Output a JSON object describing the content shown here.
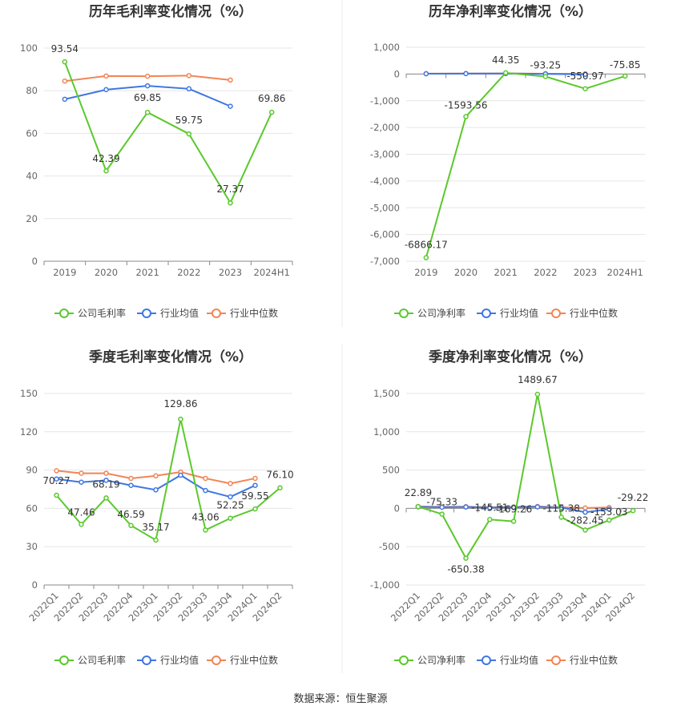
{
  "source": "数据来源：恒生聚源",
  "colors": {
    "company": "#5ac92c",
    "avg": "#3f77e3",
    "median": "#f28554"
  },
  "chart_data": [
    {
      "type": "line",
      "title": "历年毛利率变化情况（%）",
      "categories": [
        "2019",
        "2020",
        "2021",
        "2022",
        "2023",
        "2024H1"
      ],
      "ylim": [
        0,
        100
      ],
      "yticks": [
        "0",
        "20",
        "40",
        "60",
        "80",
        "100"
      ],
      "grid": true,
      "legend": "bottom",
      "series": [
        {
          "name": "公司毛利率",
          "key": "company",
          "values": [
            93.54,
            42.39,
            69.85,
            59.75,
            27.37,
            69.86
          ],
          "labels": [
            "93.54",
            "42.39",
            "69.85",
            "59.75",
            "27.37",
            "69.86"
          ]
        },
        {
          "name": "行业均值",
          "key": "avg",
          "values": [
            76.0,
            80.5,
            82.3,
            80.9,
            72.7,
            null
          ]
        },
        {
          "name": "行业中位数",
          "key": "median",
          "values": [
            84.5,
            86.9,
            86.8,
            87.1,
            85.0,
            null
          ]
        }
      ]
    },
    {
      "type": "line",
      "title": "历年净利率变化情况（%）",
      "categories": [
        "2019",
        "2020",
        "2021",
        "2022",
        "2023",
        "2024H1"
      ],
      "ylim": [
        -7000,
        1000
      ],
      "yticks": [
        "-7,000",
        "-6,000",
        "-5,000",
        "-4,000",
        "-3,000",
        "-2,000",
        "-1,000",
        "0",
        "1,000"
      ],
      "grid": true,
      "legend": "bottom",
      "series": [
        {
          "name": "公司净利率",
          "key": "company",
          "values": [
            -6866.17,
            -1593.56,
            44.35,
            -93.25,
            -550.97,
            -75.85
          ],
          "labels": [
            "-6866.17",
            "-1593.56",
            "44.35",
            "-93.25",
            "-550.97",
            "-75.85"
          ]
        },
        {
          "name": "行业均值",
          "key": "avg",
          "values": [
            10,
            15,
            18,
            5,
            -10,
            null
          ]
        },
        {
          "name": "行业中位数",
          "key": "median",
          "values": [
            15,
            20,
            22,
            12,
            8,
            null
          ]
        }
      ]
    },
    {
      "type": "line",
      "title": "季度毛利率变化情况（%）",
      "categories": [
        "2022Q1",
        "2022Q2",
        "2022Q3",
        "2022Q4",
        "2023Q1",
        "2023Q2",
        "2023Q3",
        "2023Q4",
        "2024Q1",
        "2024Q2"
      ],
      "ylim": [
        0,
        150
      ],
      "yticks": [
        "0",
        "30",
        "60",
        "90",
        "120",
        "150"
      ],
      "grid": true,
      "legend": "bottom",
      "series": [
        {
          "name": "公司毛利率",
          "key": "company",
          "values": [
            70.27,
            47.46,
            68.19,
            46.59,
            35.17,
            129.86,
            43.06,
            52.25,
            59.55,
            76.1
          ],
          "labels": [
            "70.27",
            "47.46",
            "68.19",
            "46.59",
            "35.17",
            "129.86",
            "43.06",
            "52.25",
            "59.55",
            "76.10"
          ]
        },
        {
          "name": "行业均值",
          "key": "avg",
          "values": [
            83.0,
            80.5,
            82.0,
            78.0,
            74.5,
            86.0,
            74.0,
            69.0,
            78.0,
            null
          ]
        },
        {
          "name": "行业中位数",
          "key": "median",
          "values": [
            89.5,
            87.5,
            87.5,
            83.5,
            85.5,
            88.5,
            83.5,
            79.5,
            83.5,
            null
          ]
        }
      ]
    },
    {
      "type": "line",
      "title": "季度净利率变化情况（%）",
      "categories": [
        "2022Q1",
        "2022Q2",
        "2022Q3",
        "2022Q4",
        "2023Q1",
        "2023Q2",
        "2023Q3",
        "2023Q4",
        "2024Q1",
        "2024Q2"
      ],
      "ylim": [
        -1000,
        1500
      ],
      "yticks": [
        "-1,000",
        "-500",
        "0",
        "500",
        "1,000",
        "1,500"
      ],
      "grid": true,
      "legend": "bottom",
      "series": [
        {
          "name": "公司净利率",
          "key": "company",
          "values": [
            22.89,
            -75.33,
            -650.38,
            -145.51,
            -169.26,
            1489.67,
            -115.38,
            -282.45,
            -153.03,
            -29.22
          ],
          "labels": [
            "22.89",
            "-75.33",
            "-650.38",
            "-145.51",
            "-169.26",
            "1489.67",
            "-115.38",
            "-282.45",
            "-153.03",
            "-29.22"
          ]
        },
        {
          "name": "行业均值",
          "key": "avg",
          "values": [
            20,
            15,
            18,
            10,
            15,
            20,
            10,
            -50,
            -10,
            null
          ]
        },
        {
          "name": "行业中位数",
          "key": "median",
          "values": [
            25,
            20,
            22,
            15,
            20,
            25,
            15,
            5,
            12,
            null
          ]
        }
      ]
    }
  ]
}
